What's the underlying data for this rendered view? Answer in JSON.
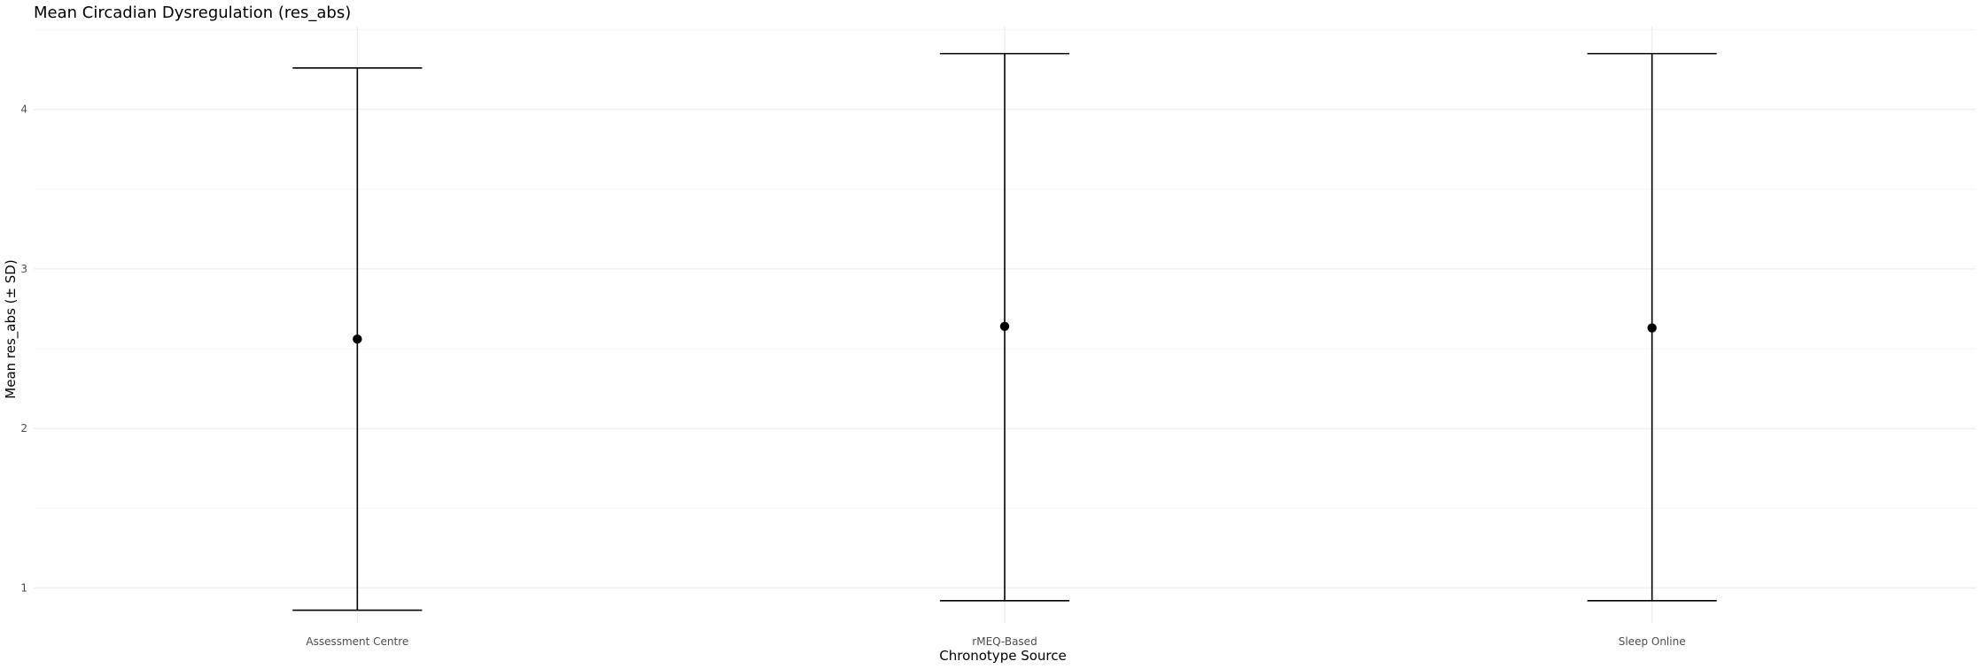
{
  "chart_data": {
    "type": "errorbar",
    "title": "Mean Circadian Dysregulation (res_abs)",
    "xlabel": "Chronotype Source",
    "ylabel": "Mean res_abs (± SD)",
    "categories": [
      "Assessment Centre",
      "rMEQ-Based",
      "Sleep Online"
    ],
    "series": [
      {
        "mean": [
          2.56,
          2.64,
          2.63
        ],
        "lower": [
          0.86,
          0.92,
          0.92
        ],
        "upper": [
          4.26,
          4.35,
          4.35
        ]
      }
    ],
    "y_ticks": [
      "1",
      "2",
      "3",
      "4"
    ],
    "ylim": [
      0.78,
      4.52
    ],
    "grid": true,
    "legend": "none"
  }
}
